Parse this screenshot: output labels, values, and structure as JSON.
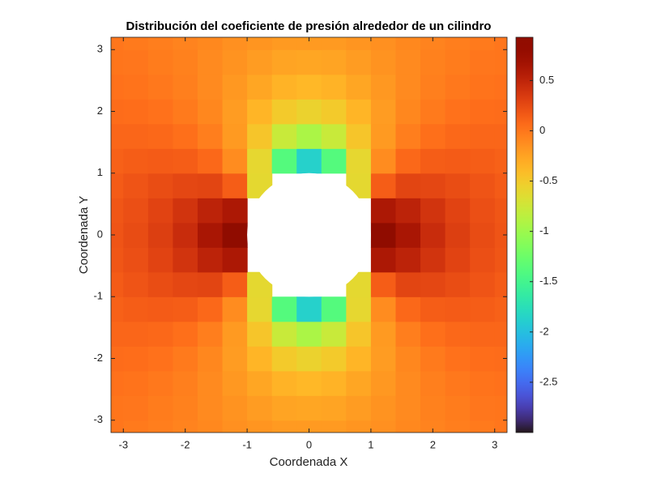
{
  "chart_data": {
    "type": "contour",
    "title": "Distribución del coeficiente de presión alrededor de un cilindro",
    "x_label": "Coordenada X",
    "y_label": "Coordenada Y",
    "colormap": "turbo",
    "xlim": [
      -3.2,
      3.2
    ],
    "ylim": [
      -3.2,
      3.2
    ],
    "xticks": [
      -3,
      -2,
      -1,
      0,
      1,
      2,
      3
    ],
    "yticks": [
      -3,
      -2,
      -1,
      0,
      1,
      2,
      3
    ],
    "clim": [
      -3,
      0.93
    ],
    "cticks": [
      -2.5,
      -2,
      -1.5,
      -1,
      -0.5,
      0,
      0.5
    ],
    "x": [
      -3.2,
      -2.8,
      -2.4,
      -2,
      -1.6,
      -1.2,
      -0.8,
      -0.4,
      0,
      0.4,
      0.8,
      1.2,
      1.6,
      2,
      2.4,
      2.8,
      3.2
    ],
    "y": [
      -3.2,
      -2.8,
      -2.4,
      -2,
      -1.6,
      -1.2,
      -0.8,
      -0.4,
      0,
      0.4,
      0.8,
      1.2,
      1.6,
      2,
      2.4,
      2.8,
      3.2
    ],
    "z": [
      [
        0,
        -0.02,
        -0.04,
        -0.07,
        -0.1,
        -0.14,
        -0.17,
        -0.2,
        -0.2,
        -0.2,
        -0.17,
        -0.14,
        -0.1,
        -0.07,
        -0.04,
        -0.02,
        0
      ],
      [
        0.01,
        0,
        -0.03,
        -0.06,
        -0.11,
        -0.16,
        -0.21,
        -0.26,
        -0.27,
        -0.26,
        -0.21,
        -0.16,
        -0.11,
        -0.06,
        -0.03,
        0,
        0.01
      ],
      [
        0.03,
        0.02,
        -0.01,
        -0.05,
        -0.11,
        -0.19,
        -0.27,
        -0.35,
        -0.38,
        -0.35,
        -0.27,
        -0.19,
        -0.11,
        -0.05,
        -0.01,
        0.02,
        0.03
      ],
      [
        0.06,
        0.05,
        0.03,
        -0.02,
        -0.09,
        -0.21,
        -0.36,
        -0.5,
        -0.56,
        -0.5,
        -0.36,
        -0.21,
        -0.09,
        -0.02,
        0.03,
        0.05,
        0.06
      ],
      [
        0.09,
        0.09,
        0.08,
        0.04,
        -0.04,
        -0.2,
        -0.47,
        -0.78,
        -0.93,
        -0.78,
        -0.47,
        -0.2,
        -0.04,
        0.04,
        0.08,
        0.09,
        0.09
      ],
      [
        0.12,
        0.14,
        0.15,
        0.14,
        0.08,
        -0.12,
        -0.6,
        -1.39,
        -1.87,
        -1.39,
        -0.6,
        -0.12,
        0.08,
        0.14,
        0.15,
        0.14,
        0.12
      ],
      [
        0.15,
        0.19,
        0.23,
        0.27,
        0.28,
        0.14,
        -0.61,
        null,
        null,
        null,
        -0.61,
        0.14,
        0.28,
        0.27,
        0.23,
        0.19,
        0.15
      ],
      [
        0.18,
        0.22,
        0.29,
        0.39,
        0.51,
        0.61,
        null,
        null,
        null,
        null,
        null,
        0.61,
        0.51,
        0.39,
        0.29,
        0.22,
        0.18
      ],
      [
        0.19,
        0.24,
        0.32,
        0.44,
        0.63,
        0.91,
        null,
        null,
        null,
        null,
        null,
        0.91,
        0.63,
        0.44,
        0.32,
        0.24,
        0.19
      ],
      [
        0.18,
        0.22,
        0.29,
        0.39,
        0.51,
        0.61,
        null,
        null,
        null,
        null,
        null,
        0.61,
        0.51,
        0.39,
        0.29,
        0.22,
        0.18
      ],
      [
        0.15,
        0.19,
        0.23,
        0.27,
        0.28,
        0.14,
        -0.61,
        null,
        null,
        null,
        -0.61,
        0.14,
        0.28,
        0.27,
        0.23,
        0.19,
        0.15
      ],
      [
        0.12,
        0.14,
        0.15,
        0.14,
        0.08,
        -0.12,
        -0.6,
        -1.39,
        -1.87,
        -1.39,
        -0.6,
        -0.12,
        0.08,
        0.14,
        0.15,
        0.14,
        0.12
      ],
      [
        0.09,
        0.09,
        0.08,
        0.04,
        -0.04,
        -0.2,
        -0.47,
        -0.78,
        -0.93,
        -0.78,
        -0.47,
        -0.2,
        -0.04,
        0.04,
        0.08,
        0.09,
        0.09
      ],
      [
        0.06,
        0.05,
        0.03,
        -0.02,
        -0.09,
        -0.21,
        -0.36,
        -0.5,
        -0.56,
        -0.5,
        -0.36,
        -0.21,
        -0.09,
        -0.02,
        0.03,
        0.05,
        0.06
      ],
      [
        0.03,
        0.02,
        -0.01,
        -0.05,
        -0.11,
        -0.19,
        -0.27,
        -0.35,
        -0.38,
        -0.35,
        -0.27,
        -0.19,
        -0.11,
        -0.05,
        -0.01,
        0.02,
        0.03
      ],
      [
        0.01,
        0,
        -0.03,
        -0.06,
        -0.11,
        -0.16,
        -0.21,
        -0.26,
        -0.27,
        -0.26,
        -0.21,
        -0.16,
        -0.11,
        -0.06,
        -0.03,
        0,
        0.01
      ],
      [
        0,
        -0.02,
        -0.04,
        -0.07,
        -0.1,
        -0.14,
        -0.17,
        -0.2,
        -0.2,
        -0.2,
        -0.17,
        -0.14,
        -0.1,
        -0.07,
        -0.04,
        -0.02,
        0
      ]
    ]
  }
}
